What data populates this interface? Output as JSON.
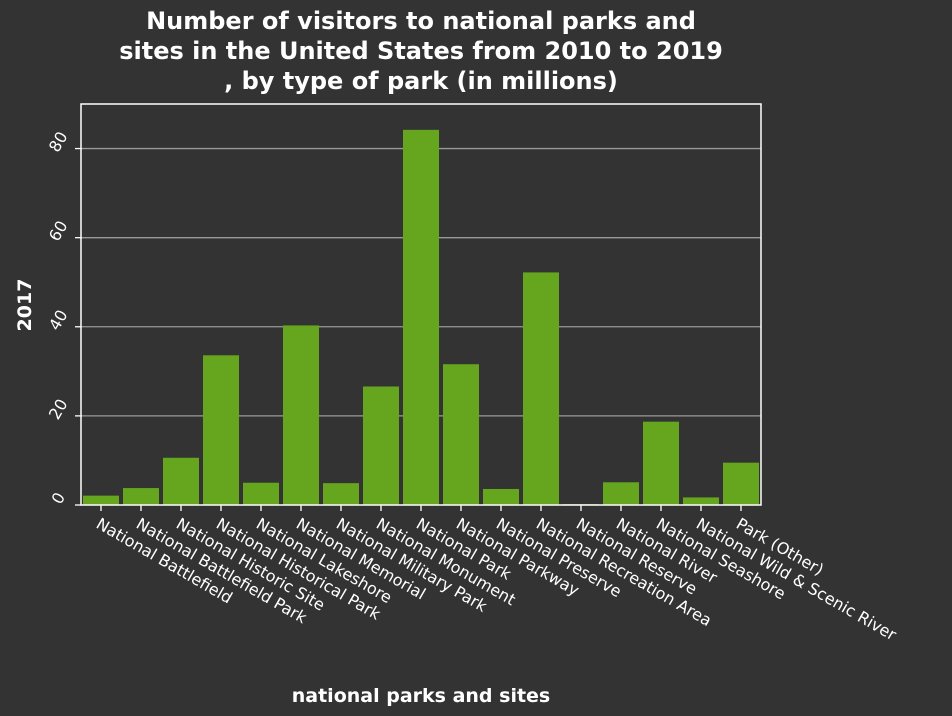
{
  "chart_data": {
    "type": "bar",
    "title_lines": [
      "Number of visitors to national parks and",
      "sites in the United States from 2010 to 2019",
      ", by type of park (in millions)"
    ],
    "xlabel": "national parks and sites",
    "ylabel": "2017",
    "categories": [
      "National Battlefield",
      "National Battlefield Park",
      "National Historic Site",
      "National Historical Park",
      "National Lakeshore",
      "National Memorial",
      "National Military Park",
      "National Monument",
      "National Park",
      "National Parkway",
      "National Preserve",
      "National Recreation Area",
      "National Reserve",
      "National River",
      "National Seashore",
      "National Wild & Scenic River",
      "Park (Other)"
    ],
    "values": [
      2.1,
      3.8,
      10.6,
      33.6,
      5.0,
      40.3,
      4.9,
      26.6,
      84.2,
      31.6,
      3.6,
      52.2,
      0.2,
      5.1,
      18.7,
      1.7,
      9.5
    ],
    "ylim": [
      0,
      90
    ],
    "yticks": [
      0,
      20,
      40,
      60,
      80
    ],
    "grid": true,
    "colors": {
      "bar": "#66a61e",
      "background": "#333333",
      "grid": "#9a9a9a",
      "text": "#ffffff"
    }
  }
}
